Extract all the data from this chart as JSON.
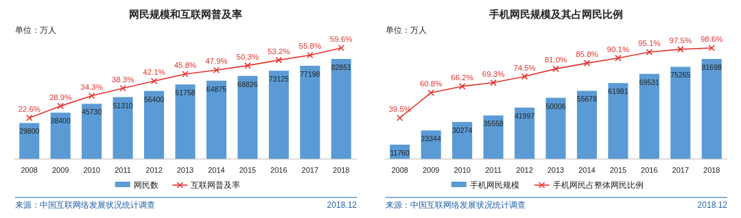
{
  "chart_data": [
    {
      "type": "bar",
      "title": "网民规模和互联网普及率",
      "categories": [
        "2008",
        "2009",
        "2010",
        "2011",
        "2012",
        "2013",
        "2014",
        "2015",
        "2016",
        "2017",
        "2018"
      ],
      "legend": "bottom",
      "series": [
        {
          "name": "网民数",
          "color": "#5b9bd5",
          "values": [
            29800,
            38400,
            45730,
            51310,
            56400,
            61758,
            64875,
            68826,
            73125,
            77198,
            82851
          ],
          "value_labels": [
            "29800",
            "38400",
            "45730",
            "51310",
            "56400",
            "61758",
            "64875",
            "68826",
            "73125",
            "77198",
            "82851"
          ]
        },
        {
          "name": "互联网普及率",
          "type": "line",
          "axis": "y2",
          "color": "#e3342f",
          "marker": "cross",
          "values": [
            22.6,
            28.9,
            34.3,
            38.3,
            42.1,
            45.8,
            47.9,
            50.3,
            53.2,
            55.8,
            59.6
          ],
          "value_labels": [
            "22.6%",
            "28.9%",
            "34.3%",
            "38.3%",
            "42.1%",
            "45.8%",
            "47.9%",
            "50.3%",
            "53.2%",
            "55.8%",
            "59.6%"
          ]
        }
      ],
      "annotations": [
        "单位：万人",
        "来源：中国互联网络发展状况统计调查",
        "2018.12"
      ]
    },
    {
      "type": "bar",
      "title": "手机网民规模及其占网民比例",
      "categories": [
        "2008",
        "2009",
        "2010",
        "2011",
        "2012",
        "2013",
        "2014",
        "2015",
        "2016",
        "2017",
        "2018"
      ],
      "legend": "bottom",
      "series": [
        {
          "name": "手机网民规模",
          "color": "#5b9bd5",
          "values": [
            11760,
            23344,
            30274,
            35558,
            41997,
            50006,
            55678,
            61981,
            69531,
            75265,
            81698
          ],
          "value_labels": [
            "11760",
            "23344",
            "30274",
            "35558",
            "41997",
            "50006",
            "55678",
            "61981",
            "69531",
            "75265",
            "81698"
          ]
        },
        {
          "name": "手机网民占整体网民比例",
          "type": "line",
          "axis": "y2",
          "color": "#e3342f",
          "marker": "cross",
          "values": [
            39.5,
            60.8,
            66.2,
            69.3,
            74.5,
            81.0,
            85.8,
            90.1,
            95.1,
            97.5,
            98.6
          ],
          "value_labels": [
            "39.5%",
            "60.8%",
            "66.2%",
            "69.3%",
            "74.5%",
            "81.0%",
            "85.8%",
            "90.1%",
            "95.1%",
            "97.5%",
            "98.6%"
          ]
        }
      ],
      "annotations": [
        "单位：万人",
        "来源：中国互联网络发展状况统计调查",
        "2018.12"
      ]
    }
  ]
}
